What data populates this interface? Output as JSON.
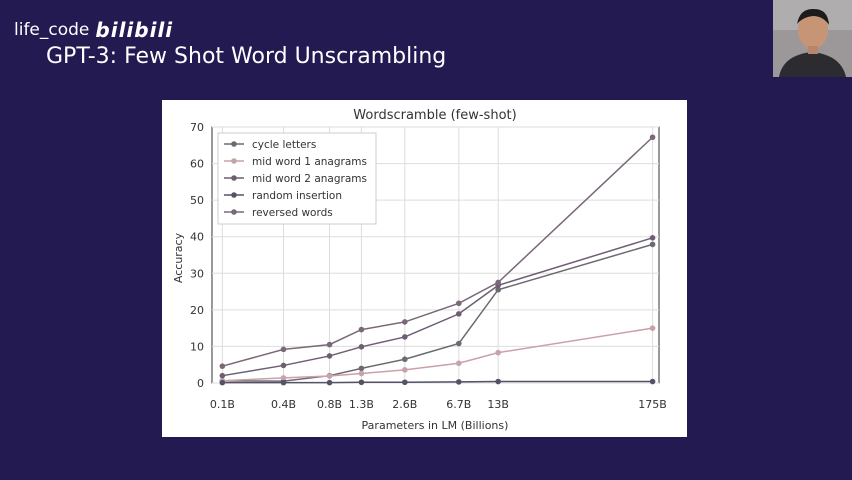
{
  "watermark": {
    "user": "life_code",
    "brand": "bilibili"
  },
  "slide": {
    "title": "GPT-3: Few Shot Word Unscrambling"
  },
  "webcam": {
    "caption": ""
  },
  "chart_data": {
    "type": "line",
    "title": "Wordscramble (few-shot)",
    "xlabel": "Parameters in LM (Billions)",
    "ylabel": "Accuracy",
    "x": [
      "0.1B",
      "0.4B",
      "0.8B",
      "1.3B",
      "2.6B",
      "6.7B",
      "13B",
      "175B"
    ],
    "x_values": [
      0.125,
      0.35,
      0.76,
      1.3,
      2.7,
      6.7,
      13,
      175
    ],
    "x_scale": "log",
    "ylim": [
      0,
      70
    ],
    "yticks": [
      0,
      10,
      20,
      30,
      40,
      50,
      60,
      70
    ],
    "grid": true,
    "legend_position": "top-left",
    "series": [
      {
        "name": "cycle letters",
        "color": "#6b6a72",
        "values": [
          0.6,
          0.5,
          2.0,
          4.0,
          6.5,
          10.8,
          25.5,
          37.9
        ]
      },
      {
        "name": "mid word 1 anagrams",
        "color": "#c8a2a8",
        "values": [
          0.6,
          1.4,
          1.9,
          2.6,
          3.6,
          5.4,
          8.3,
          15.0
        ]
      },
      {
        "name": "mid word 2 anagrams",
        "color": "#6e5e74",
        "values": [
          2.0,
          4.8,
          7.4,
          9.9,
          12.6,
          18.9,
          26.7,
          39.7
        ]
      },
      {
        "name": "random insertion",
        "color": "#555266",
        "values": [
          0.1,
          0.1,
          0.1,
          0.2,
          0.2,
          0.3,
          0.4,
          0.4
        ]
      },
      {
        "name": "reversed words",
        "color": "#7a6878",
        "values": [
          4.6,
          9.2,
          10.5,
          14.6,
          16.7,
          21.8,
          27.5,
          67.2
        ]
      }
    ]
  }
}
